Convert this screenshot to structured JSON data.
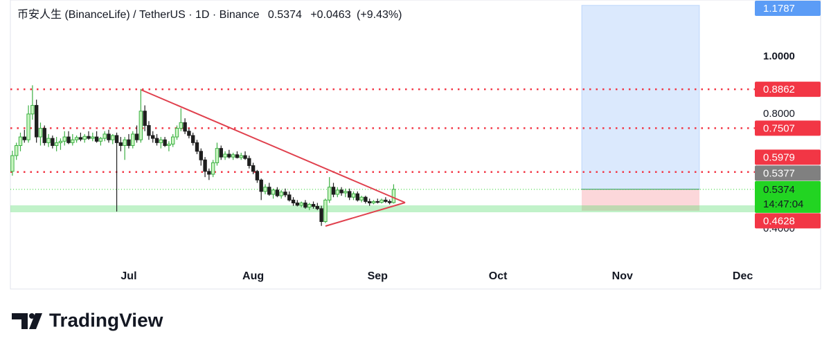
{
  "chart_data": {
    "type": "candlestick",
    "title": "币安人生 (BinanceLife) / TetherUS · 1D · Binance",
    "last_price": 0.5374,
    "change": "+0.0463",
    "change_percent": "(+9.43%)",
    "countdown": "14:47:04",
    "current_color": "#22d422",
    "up_color": "#3cb043",
    "down_color": "#1e1e1e",
    "open": [
      0.6,
      0.655,
      0.69,
      0.72,
      0.71,
      0.8,
      0.83,
      0.72,
      0.75,
      0.7,
      0.715,
      0.69,
      0.7,
      0.705,
      0.72,
      0.7,
      0.71,
      0.718,
      0.712,
      0.722,
      0.715,
      0.72,
      0.705,
      0.715,
      0.73,
      0.71,
      0.725,
      0.7,
      0.69,
      0.71,
      0.69,
      0.73,
      0.71,
      0.81,
      0.76,
      0.725,
      0.715,
      0.7,
      0.71,
      0.69,
      0.695,
      0.72,
      0.75,
      0.77,
      0.74,
      0.725,
      0.7,
      0.67,
      0.64,
      0.6,
      0.59,
      0.63,
      0.68,
      0.65,
      0.66,
      0.65,
      0.658,
      0.648,
      0.655,
      0.645,
      0.62,
      0.6,
      0.57,
      0.53,
      0.545,
      0.52,
      0.535,
      0.515,
      0.528,
      0.518,
      0.5,
      0.49,
      0.482,
      0.49,
      0.475,
      0.485,
      0.478,
      0.47,
      0.425,
      0.5,
      0.545,
      0.52,
      0.535,
      0.525,
      0.53,
      0.51,
      0.522,
      0.5,
      0.51,
      0.495,
      0.49,
      0.495,
      0.492,
      0.5,
      0.495,
      0.4911
    ],
    "high": [
      0.672,
      0.7,
      0.735,
      0.745,
      0.83,
      0.9,
      0.85,
      0.77,
      0.76,
      0.73,
      0.725,
      0.72,
      0.715,
      0.74,
      0.74,
      0.73,
      0.725,
      0.735,
      0.73,
      0.74,
      0.735,
      0.74,
      0.72,
      0.74,
      0.745,
      0.73,
      0.735,
      0.72,
      0.72,
      0.73,
      0.74,
      0.76,
      0.887,
      0.83,
      0.775,
      0.74,
      0.73,
      0.72,
      0.72,
      0.705,
      0.73,
      0.76,
      0.82,
      0.785,
      0.75,
      0.735,
      0.71,
      0.68,
      0.65,
      0.61,
      0.64,
      0.7,
      0.69,
      0.67,
      0.675,
      0.665,
      0.67,
      0.665,
      0.67,
      0.655,
      0.63,
      0.605,
      0.575,
      0.555,
      0.56,
      0.54,
      0.545,
      0.535,
      0.54,
      0.53,
      0.51,
      0.5,
      0.495,
      0.5,
      0.49,
      0.495,
      0.49,
      0.48,
      0.505,
      0.58,
      0.56,
      0.545,
      0.545,
      0.54,
      0.54,
      0.53,
      0.53,
      0.515,
      0.515,
      0.505,
      0.5,
      0.505,
      0.505,
      0.51,
      0.502,
      0.555
    ],
    "low": [
      0.585,
      0.64,
      0.67,
      0.7,
      0.7,
      0.78,
      0.7,
      0.69,
      0.69,
      0.685,
      0.68,
      0.67,
      0.675,
      0.69,
      0.695,
      0.69,
      0.7,
      0.705,
      0.7,
      0.71,
      0.705,
      0.7,
      0.69,
      0.705,
      0.7,
      0.695,
      0.46,
      0.67,
      0.64,
      0.68,
      0.68,
      0.7,
      0.7,
      0.74,
      0.71,
      0.7,
      0.69,
      0.68,
      0.685,
      0.67,
      0.685,
      0.71,
      0.74,
      0.73,
      0.715,
      0.69,
      0.66,
      0.62,
      0.58,
      0.57,
      0.58,
      0.62,
      0.64,
      0.64,
      0.645,
      0.64,
      0.645,
      0.64,
      0.64,
      0.61,
      0.59,
      0.56,
      0.5,
      0.52,
      0.515,
      0.505,
      0.51,
      0.505,
      0.51,
      0.495,
      0.48,
      0.478,
      0.475,
      0.47,
      0.465,
      0.47,
      0.465,
      0.41,
      0.42,
      0.49,
      0.51,
      0.51,
      0.515,
      0.51,
      0.5,
      0.5,
      0.495,
      0.492,
      0.488,
      0.48,
      0.485,
      0.488,
      0.488,
      0.49,
      0.485,
      0.488
    ],
    "close": [
      0.655,
      0.69,
      0.72,
      0.71,
      0.8,
      0.83,
      0.72,
      0.75,
      0.7,
      0.715,
      0.69,
      0.7,
      0.705,
      0.72,
      0.7,
      0.71,
      0.718,
      0.712,
      0.722,
      0.715,
      0.72,
      0.705,
      0.715,
      0.73,
      0.71,
      0.725,
      0.7,
      0.69,
      0.71,
      0.69,
      0.73,
      0.71,
      0.81,
      0.76,
      0.725,
      0.715,
      0.7,
      0.71,
      0.69,
      0.695,
      0.72,
      0.75,
      0.77,
      0.74,
      0.725,
      0.7,
      0.67,
      0.64,
      0.6,
      0.59,
      0.63,
      0.68,
      0.65,
      0.66,
      0.65,
      0.658,
      0.648,
      0.655,
      0.645,
      0.62,
      0.6,
      0.57,
      0.53,
      0.545,
      0.52,
      0.535,
      0.515,
      0.528,
      0.518,
      0.5,
      0.49,
      0.482,
      0.49,
      0.475,
      0.485,
      0.478,
      0.47,
      0.425,
      0.5,
      0.545,
      0.52,
      0.535,
      0.525,
      0.53,
      0.51,
      0.522,
      0.5,
      0.51,
      0.495,
      0.49,
      0.495,
      0.492,
      0.5,
      0.495,
      0.4911,
      0.5374
    ],
    "xlim": [
      -0.5,
      185
    ],
    "xticks": [
      {
        "value": 29,
        "label": "Jul"
      },
      {
        "value": 60,
        "label": "Aug"
      },
      {
        "value": 91,
        "label": "Sep"
      },
      {
        "value": 121,
        "label": "Oct"
      },
      {
        "value": 152,
        "label": "Nov"
      },
      {
        "value": 182,
        "label": "Dec"
      }
    ],
    "ylim": [
      0.19,
      1.178
    ],
    "yticks": [
      {
        "value": 1,
        "label": "1.0000"
      },
      {
        "value": 0.8,
        "label": "0.8000"
      },
      {
        "value": 0.4,
        "label": "0.4000"
      }
    ],
    "levels": [
      {
        "value": 0.8862,
        "color": "#f23645"
      },
      {
        "value": 0.7507,
        "color": "#f23645"
      },
      {
        "value": 0.5979,
        "color": "#f23645"
      }
    ],
    "position": {
      "target": {
        "value": 1.1787,
        "color": "#5b9cf6"
      },
      "entry": {
        "value": 0.5377,
        "color": "#808080"
      },
      "stop": {
        "value": 0.4628,
        "color": "#f23645"
      }
    },
    "brand": "TradingView"
  }
}
